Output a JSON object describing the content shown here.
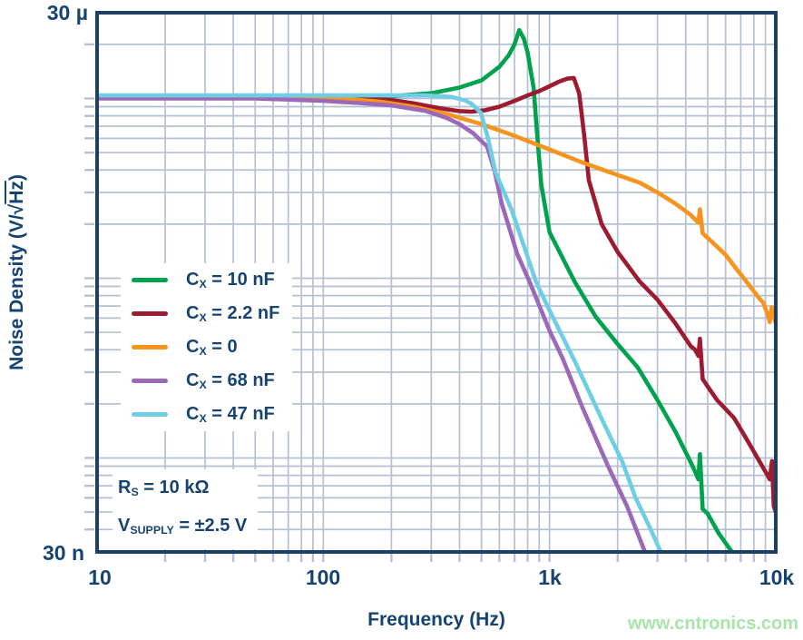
{
  "watermark": {
    "text": "www.cntronics.com",
    "color": "#a9e5ab"
  },
  "style_colors": {
    "text_navy": "#164472",
    "plot_border": "#1d3f66",
    "gridline": "#b4c1d2",
    "background": "#ffffff"
  },
  "chart_data": {
    "type": "line",
    "title": "",
    "x_axis": {
      "label": "Frequency (Hz)",
      "scale": "log",
      "min": 10,
      "max": 10000,
      "ticks": [
        {
          "value": 10,
          "label": "10"
        },
        {
          "value": 100,
          "label": "100"
        },
        {
          "value": 1000,
          "label": "1k"
        },
        {
          "value": 10000,
          "label": "10k"
        }
      ]
    },
    "y_axis": {
      "label_prefix": "Noise Density (V/",
      "label_radical": "√",
      "label_radicand": "Hz",
      "label_suffix": ")",
      "units": "V/sqrt(Hz)",
      "scale": "log",
      "min": 3e-08,
      "max": 3e-05,
      "ticks": [
        {
          "value": 3e-05,
          "label": "30 µ"
        },
        {
          "value": 3e-08,
          "label": "30 n"
        }
      ]
    },
    "legend_position": "inside-left",
    "grid": true,
    "series": [
      {
        "id": "cx-10nf",
        "label": {
          "pre": "C",
          "sub": "X",
          "post": " = 10 nF"
        },
        "color": "#00A24E",
        "points": [
          [
            10,
            1.02e-05
          ],
          [
            100,
            1.02e-05
          ],
          [
            200,
            1.03e-05
          ],
          [
            300,
            1.07e-05
          ],
          [
            400,
            1.15e-05
          ],
          [
            500,
            1.26e-05
          ],
          [
            600,
            1.5e-05
          ],
          [
            660,
            1.74e-05
          ],
          [
            700,
            2e-05
          ],
          [
            735,
            2.4e-05
          ],
          [
            770,
            2.15e-05
          ],
          [
            800,
            1.8e-05
          ],
          [
            850,
            1.15e-05
          ],
          [
            880,
            6.5e-06
          ],
          [
            920,
            3.3e-06
          ],
          [
            1000,
            1.8e-06
          ],
          [
            1290,
            9.6e-07
          ],
          [
            1600,
            6.1e-07
          ],
          [
            2000,
            4.3e-07
          ],
          [
            2450,
            3.2e-07
          ],
          [
            3000,
            2.1e-07
          ],
          [
            3600,
            1.4e-07
          ],
          [
            4200,
            9.5e-08
          ],
          [
            4400,
            8.4e-08
          ],
          [
            4550,
            7.6e-08
          ],
          [
            4620,
            1.05e-07
          ],
          [
            4750,
            5.2e-08
          ],
          [
            5000,
            4.9e-08
          ],
          [
            5600,
            3.8e-08
          ],
          [
            6400,
            3e-08
          ],
          [
            6600,
            2.6e-08
          ]
        ]
      },
      {
        "id": "cx-2p2nf",
        "label": {
          "pre": "C",
          "sub": "X",
          "post": " = 2.2 nF"
        },
        "color": "#9C1B30",
        "points": [
          [
            10,
            1.02e-05
          ],
          [
            120,
            1.02e-05
          ],
          [
            160,
            1e-05
          ],
          [
            200,
            9.8e-06
          ],
          [
            250,
            9.4e-06
          ],
          [
            300,
            9e-06
          ],
          [
            350,
            8.7e-06
          ],
          [
            400,
            8.5e-06
          ],
          [
            450,
            8.45e-06
          ],
          [
            520,
            8.6e-06
          ],
          [
            600,
            9e-06
          ],
          [
            700,
            9.7e-06
          ],
          [
            800,
            1.04e-05
          ],
          [
            900,
            1.1e-05
          ],
          [
            1000,
            1.17e-05
          ],
          [
            1100,
            1.24e-05
          ],
          [
            1200,
            1.29e-05
          ],
          [
            1280,
            1.3e-05
          ],
          [
            1352,
            1.07e-05
          ],
          [
            1424,
            6.2e-06
          ],
          [
            1492,
            3.5e-06
          ],
          [
            1700,
            2e-06
          ],
          [
            2000,
            1.4e-06
          ],
          [
            2500,
            9.6e-07
          ],
          [
            3000,
            7.6e-07
          ],
          [
            3600,
            5.6e-07
          ],
          [
            4200,
            4.2e-07
          ],
          [
            4400,
            4e-07
          ],
          [
            4550,
            3.7e-07
          ],
          [
            4620,
            4.6e-07
          ],
          [
            4750,
            2.75e-07
          ],
          [
            5000,
            2.5e-07
          ],
          [
            5500,
            2.1e-07
          ],
          [
            6540,
            1.67e-07
          ],
          [
            7500,
            1.25e-07
          ],
          [
            8500,
            9.5e-08
          ],
          [
            9200,
            8e-08
          ],
          [
            9400,
            7.6e-08
          ],
          [
            9620,
            9.6e-08
          ],
          [
            9800,
            5.4e-08
          ],
          [
            10000,
            5e-08
          ]
        ]
      },
      {
        "id": "cx-0",
        "label": {
          "pre": "C",
          "sub": "X",
          "post": " = 0"
        },
        "color": "#F7941E",
        "points": [
          [
            10,
            1.02e-05
          ],
          [
            80,
            1.02e-05
          ],
          [
            120,
            1e-05
          ],
          [
            180,
            9.6e-06
          ],
          [
            250,
            9e-06
          ],
          [
            350,
            8.2e-06
          ],
          [
            500,
            7.2e-06
          ],
          [
            700,
            6.2e-06
          ],
          [
            1000,
            5.2e-06
          ],
          [
            1400,
            4.4e-06
          ],
          [
            2000,
            3.75e-06
          ],
          [
            2500,
            3.4e-06
          ],
          [
            3000,
            3e-06
          ],
          [
            3600,
            2.6e-06
          ],
          [
            4200,
            2.25e-06
          ],
          [
            4400,
            2.12e-06
          ],
          [
            4550,
            2.04e-06
          ],
          [
            4620,
            2.42e-06
          ],
          [
            4750,
            1.78e-06
          ],
          [
            5200,
            1.6e-06
          ],
          [
            6000,
            1.35e-06
          ],
          [
            6800,
            1.1e-06
          ],
          [
            7600,
            9.2e-07
          ],
          [
            8400,
            7.8e-07
          ],
          [
            8800,
            7.3e-07
          ],
          [
            9200,
            6.3e-07
          ],
          [
            9400,
            5.7e-07
          ],
          [
            9600,
            6.9e-07
          ],
          [
            10000,
            5.6e-07
          ]
        ]
      },
      {
        "id": "cx-68nf",
        "label": {
          "pre": "C",
          "sub": "X",
          "post": " = 68 nF"
        },
        "color": "#9C69B8",
        "points": [
          [
            10,
            1e-05
          ],
          [
            50,
            1e-05
          ],
          [
            100,
            9.7e-06
          ],
          [
            150,
            9.4e-06
          ],
          [
            200,
            9.15e-06
          ],
          [
            285,
            8.5e-06
          ],
          [
            350,
            7.8e-06
          ],
          [
            400,
            7.2e-06
          ],
          [
            460,
            6.4e-06
          ],
          [
            530,
            5.4e-06
          ],
          [
            570,
            4e-06
          ],
          [
            615,
            2.6e-06
          ],
          [
            720,
            1.36e-06
          ],
          [
            815,
            9.6e-07
          ],
          [
            1000,
            5.1e-07
          ],
          [
            1140,
            3.6e-07
          ],
          [
            1400,
            1.9e-07
          ],
          [
            1800,
            9.2e-08
          ],
          [
            2200,
            5.4e-08
          ],
          [
            2640,
            3e-08
          ],
          [
            2700,
            2.6e-08
          ]
        ]
      },
      {
        "id": "cx-47nf",
        "label": {
          "pre": "C",
          "sub": "X",
          "post": " = 47 nF"
        },
        "color": "#6FCDE4",
        "points": [
          [
            10,
            1.04e-05
          ],
          [
            150,
            1.04e-05
          ],
          [
            285,
            1.04e-05
          ],
          [
            367,
            1.02e-05
          ],
          [
            420,
            9.8e-06
          ],
          [
            455,
            9.3e-06
          ],
          [
            497,
            8.3e-06
          ],
          [
            535,
            6e-06
          ],
          [
            576,
            3.9e-06
          ],
          [
            680,
            2.4e-06
          ],
          [
            870,
            9.6e-07
          ],
          [
            1000,
            6.6e-07
          ],
          [
            1300,
            3.4e-07
          ],
          [
            1700,
            1.65e-07
          ],
          [
            2100,
            9.5e-08
          ],
          [
            2400,
            6e-08
          ],
          [
            2800,
            4e-08
          ],
          [
            3100,
            3e-08
          ],
          [
            3200,
            2.6e-08
          ]
        ]
      }
    ],
    "annotations": [
      {
        "pre": "R",
        "sub": "S",
        "post": " = 10 kΩ"
      },
      {
        "pre": "V",
        "sub": "SUPPLY",
        "post": " = ±2.5 V"
      }
    ]
  }
}
